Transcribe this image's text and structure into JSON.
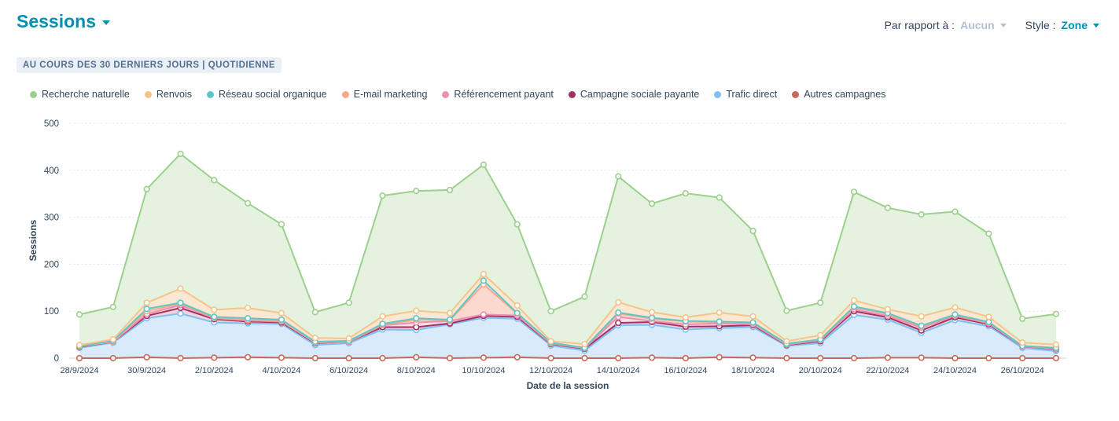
{
  "header": {
    "title": "Sessions",
    "compare_label": "Par rapport à :",
    "compare_value": "Aucun",
    "style_label": "Style :",
    "style_value": "Zone"
  },
  "period_badge": "AU COURS DES 30 DERNIERS JOURS | QUOTIDIENNE",
  "colors": {
    "accent": "#0091ae",
    "grid": "#e5e8eb",
    "axis": "#516f90"
  },
  "chart_data": {
    "type": "area",
    "stacked": true,
    "xlabel": "Date de la session",
    "ylabel": "Sessions",
    "ylim": [
      0,
      500
    ],
    "yticks": [
      0,
      100,
      200,
      300,
      400,
      500
    ],
    "grid": true,
    "legend_position": "top-left",
    "x": [
      "28/9/2024",
      "29/9/2024",
      "30/9/2024",
      "1/10/2024",
      "2/10/2024",
      "3/10/2024",
      "4/10/2024",
      "5/10/2024",
      "6/10/2024",
      "7/10/2024",
      "8/10/2024",
      "9/10/2024",
      "10/10/2024",
      "11/10/2024",
      "12/10/2024",
      "13/10/2024",
      "14/10/2024",
      "15/10/2024",
      "16/10/2024",
      "17/10/2024",
      "18/10/2024",
      "19/10/2024",
      "20/10/2024",
      "21/10/2024",
      "22/10/2024",
      "23/10/2024",
      "24/10/2024",
      "25/10/2024",
      "26/10/2024",
      "27/10/2024"
    ],
    "xtick_labels": [
      "28/9/2024",
      "30/9/2024",
      "2/10/2024",
      "4/10/2024",
      "6/10/2024",
      "8/10/2024",
      "10/10/2024",
      "12/10/2024",
      "14/10/2024",
      "16/10/2024",
      "18/10/2024",
      "20/10/2024",
      "22/10/2024",
      "24/10/2024",
      "26/10/2024"
    ],
    "series": [
      {
        "name": "Recherche naturelle",
        "color": "#9cd08c",
        "fill": "#e4f2df",
        "cumulative": [
          93,
          109,
          360,
          435,
          379,
          330,
          285,
          98,
          118,
          346,
          356,
          358,
          412,
          285,
          100,
          131,
          387,
          329,
          351,
          342,
          271,
          101,
          118,
          354,
          320,
          306,
          312,
          265,
          84,
          94
        ]
      },
      {
        "name": "Renvois",
        "color": "#f5c48a",
        "fill": "#fbe8d2",
        "cumulative": [
          28,
          40,
          118,
          148,
          103,
          107,
          96,
          43,
          42,
          89,
          101,
          96,
          179,
          112,
          36,
          30,
          119,
          98,
          87,
          97,
          89,
          36,
          49,
          123,
          104,
          89,
          108,
          88,
          33,
          29
        ]
      },
      {
        "name": "Réseau social organique",
        "color": "#5ec6c8",
        "fill": "#dcf2f3",
        "cumulative": [
          26,
          37,
          105,
          118,
          88,
          85,
          82,
          35,
          37,
          73,
          85,
          82,
          165,
          96,
          33,
          22,
          97,
          86,
          79,
          78,
          76,
          31,
          40,
          110,
          96,
          69,
          93,
          77,
          26,
          22
        ]
      },
      {
        "name": "E-mail marketing",
        "color": "#f7a98a",
        "fill": "#fcd9ce",
        "cumulative": [
          25,
          36,
          100,
          116,
          86,
          82,
          80,
          34,
          36,
          71,
          82,
          81,
          157,
          95,
          32,
          22,
          95,
          84,
          78,
          77,
          75,
          30,
          39,
          108,
          94,
          68,
          92,
          76,
          26,
          22
        ]
      },
      {
        "name": "Référencement payant",
        "color": "#ea90b1",
        "fill": "#f9dde7",
        "cumulative": [
          25,
          35,
          94,
          113,
          85,
          80,
          78,
          33,
          35,
          70,
          76,
          79,
          93,
          91,
          31,
          21,
          88,
          79,
          72,
          74,
          72,
          29,
          38,
          104,
          90,
          65,
          90,
          74,
          25,
          20
        ]
      },
      {
        "name": "Campagne sociale payante",
        "color": "#a3315f",
        "fill": "#f0d3de",
        "cumulative": [
          24,
          35,
          90,
          107,
          83,
          78,
          76,
          32,
          35,
          66,
          66,
          74,
          90,
          88,
          30,
          20,
          75,
          77,
          67,
          68,
          70,
          28,
          36,
          100,
          87,
          59,
          87,
          72,
          25,
          19
        ]
      },
      {
        "name": "Trafic direct",
        "color": "#7fbff2",
        "fill": "#d9eafb",
        "cumulative": [
          22,
          33,
          85,
          95,
          76,
          74,
          73,
          28,
          32,
          61,
          60,
          72,
          86,
          84,
          27,
          16,
          70,
          71,
          61,
          64,
          66,
          26,
          32,
          92,
          82,
          54,
          81,
          68,
          22,
          15
        ]
      },
      {
        "name": "Autres campagnes",
        "color": "#c66a57",
        "fill": "#f1dad5",
        "cumulative": [
          0,
          0,
          2,
          0,
          1,
          2,
          1,
          0,
          0,
          0,
          2,
          0,
          1,
          2,
          0,
          0,
          0,
          1,
          0,
          2,
          1,
          0,
          0,
          0,
          1,
          1,
          0,
          0,
          0,
          0
        ]
      }
    ]
  }
}
